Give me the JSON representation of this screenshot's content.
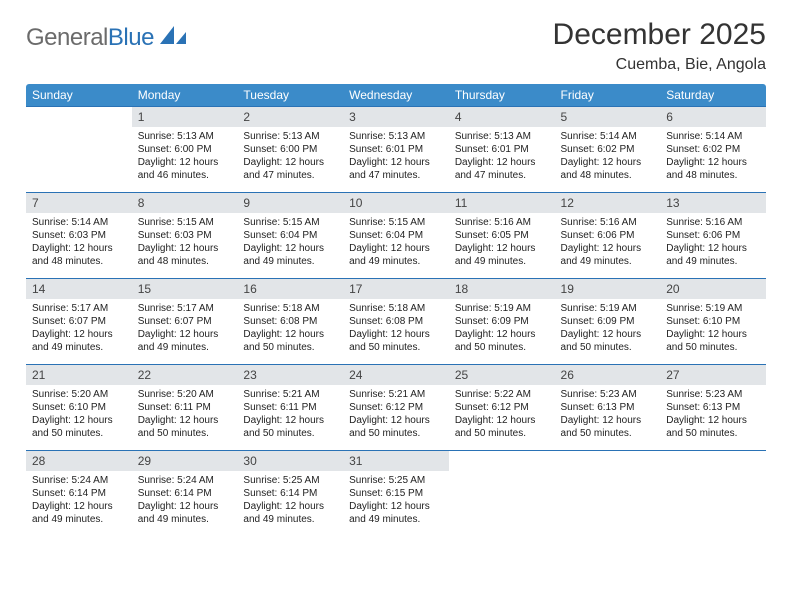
{
  "logo": {
    "part1": "General",
    "part2": "Blue"
  },
  "title": "December 2025",
  "location": "Cuemba, Bie, Angola",
  "colors": {
    "header_bg": "#3b8bc9",
    "header_text": "#ffffff",
    "daynum_bg": "#e2e5e8",
    "rule": "#2a72b5",
    "body_text": "#222222",
    "logo_blue": "#2a72b5"
  },
  "weekdays": [
    "Sunday",
    "Monday",
    "Tuesday",
    "Wednesday",
    "Thursday",
    "Friday",
    "Saturday"
  ],
  "weeks": [
    [
      {
        "empty": true
      },
      {
        "n": "1",
        "sr": "5:13 AM",
        "ss": "6:00 PM",
        "dl": "12 hours and 46 minutes."
      },
      {
        "n": "2",
        "sr": "5:13 AM",
        "ss": "6:00 PM",
        "dl": "12 hours and 47 minutes."
      },
      {
        "n": "3",
        "sr": "5:13 AM",
        "ss": "6:01 PM",
        "dl": "12 hours and 47 minutes."
      },
      {
        "n": "4",
        "sr": "5:13 AM",
        "ss": "6:01 PM",
        "dl": "12 hours and 47 minutes."
      },
      {
        "n": "5",
        "sr": "5:14 AM",
        "ss": "6:02 PM",
        "dl": "12 hours and 48 minutes."
      },
      {
        "n": "6",
        "sr": "5:14 AM",
        "ss": "6:02 PM",
        "dl": "12 hours and 48 minutes."
      }
    ],
    [
      {
        "n": "7",
        "sr": "5:14 AM",
        "ss": "6:03 PM",
        "dl": "12 hours and 48 minutes."
      },
      {
        "n": "8",
        "sr": "5:15 AM",
        "ss": "6:03 PM",
        "dl": "12 hours and 48 minutes."
      },
      {
        "n": "9",
        "sr": "5:15 AM",
        "ss": "6:04 PM",
        "dl": "12 hours and 49 minutes."
      },
      {
        "n": "10",
        "sr": "5:15 AM",
        "ss": "6:04 PM",
        "dl": "12 hours and 49 minutes."
      },
      {
        "n": "11",
        "sr": "5:16 AM",
        "ss": "6:05 PM",
        "dl": "12 hours and 49 minutes."
      },
      {
        "n": "12",
        "sr": "5:16 AM",
        "ss": "6:06 PM",
        "dl": "12 hours and 49 minutes."
      },
      {
        "n": "13",
        "sr": "5:16 AM",
        "ss": "6:06 PM",
        "dl": "12 hours and 49 minutes."
      }
    ],
    [
      {
        "n": "14",
        "sr": "5:17 AM",
        "ss": "6:07 PM",
        "dl": "12 hours and 49 minutes."
      },
      {
        "n": "15",
        "sr": "5:17 AM",
        "ss": "6:07 PM",
        "dl": "12 hours and 49 minutes."
      },
      {
        "n": "16",
        "sr": "5:18 AM",
        "ss": "6:08 PM",
        "dl": "12 hours and 50 minutes."
      },
      {
        "n": "17",
        "sr": "5:18 AM",
        "ss": "6:08 PM",
        "dl": "12 hours and 50 minutes."
      },
      {
        "n": "18",
        "sr": "5:19 AM",
        "ss": "6:09 PM",
        "dl": "12 hours and 50 minutes."
      },
      {
        "n": "19",
        "sr": "5:19 AM",
        "ss": "6:09 PM",
        "dl": "12 hours and 50 minutes."
      },
      {
        "n": "20",
        "sr": "5:19 AM",
        "ss": "6:10 PM",
        "dl": "12 hours and 50 minutes."
      }
    ],
    [
      {
        "n": "21",
        "sr": "5:20 AM",
        "ss": "6:10 PM",
        "dl": "12 hours and 50 minutes."
      },
      {
        "n": "22",
        "sr": "5:20 AM",
        "ss": "6:11 PM",
        "dl": "12 hours and 50 minutes."
      },
      {
        "n": "23",
        "sr": "5:21 AM",
        "ss": "6:11 PM",
        "dl": "12 hours and 50 minutes."
      },
      {
        "n": "24",
        "sr": "5:21 AM",
        "ss": "6:12 PM",
        "dl": "12 hours and 50 minutes."
      },
      {
        "n": "25",
        "sr": "5:22 AM",
        "ss": "6:12 PM",
        "dl": "12 hours and 50 minutes."
      },
      {
        "n": "26",
        "sr": "5:23 AM",
        "ss": "6:13 PM",
        "dl": "12 hours and 50 minutes."
      },
      {
        "n": "27",
        "sr": "5:23 AM",
        "ss": "6:13 PM",
        "dl": "12 hours and 50 minutes."
      }
    ],
    [
      {
        "n": "28",
        "sr": "5:24 AM",
        "ss": "6:14 PM",
        "dl": "12 hours and 49 minutes."
      },
      {
        "n": "29",
        "sr": "5:24 AM",
        "ss": "6:14 PM",
        "dl": "12 hours and 49 minutes."
      },
      {
        "n": "30",
        "sr": "5:25 AM",
        "ss": "6:14 PM",
        "dl": "12 hours and 49 minutes."
      },
      {
        "n": "31",
        "sr": "5:25 AM",
        "ss": "6:15 PM",
        "dl": "12 hours and 49 minutes."
      },
      {
        "empty": true
      },
      {
        "empty": true
      },
      {
        "empty": true
      }
    ]
  ],
  "labels": {
    "sunrise": "Sunrise:",
    "sunset": "Sunset:",
    "daylight": "Daylight:"
  }
}
